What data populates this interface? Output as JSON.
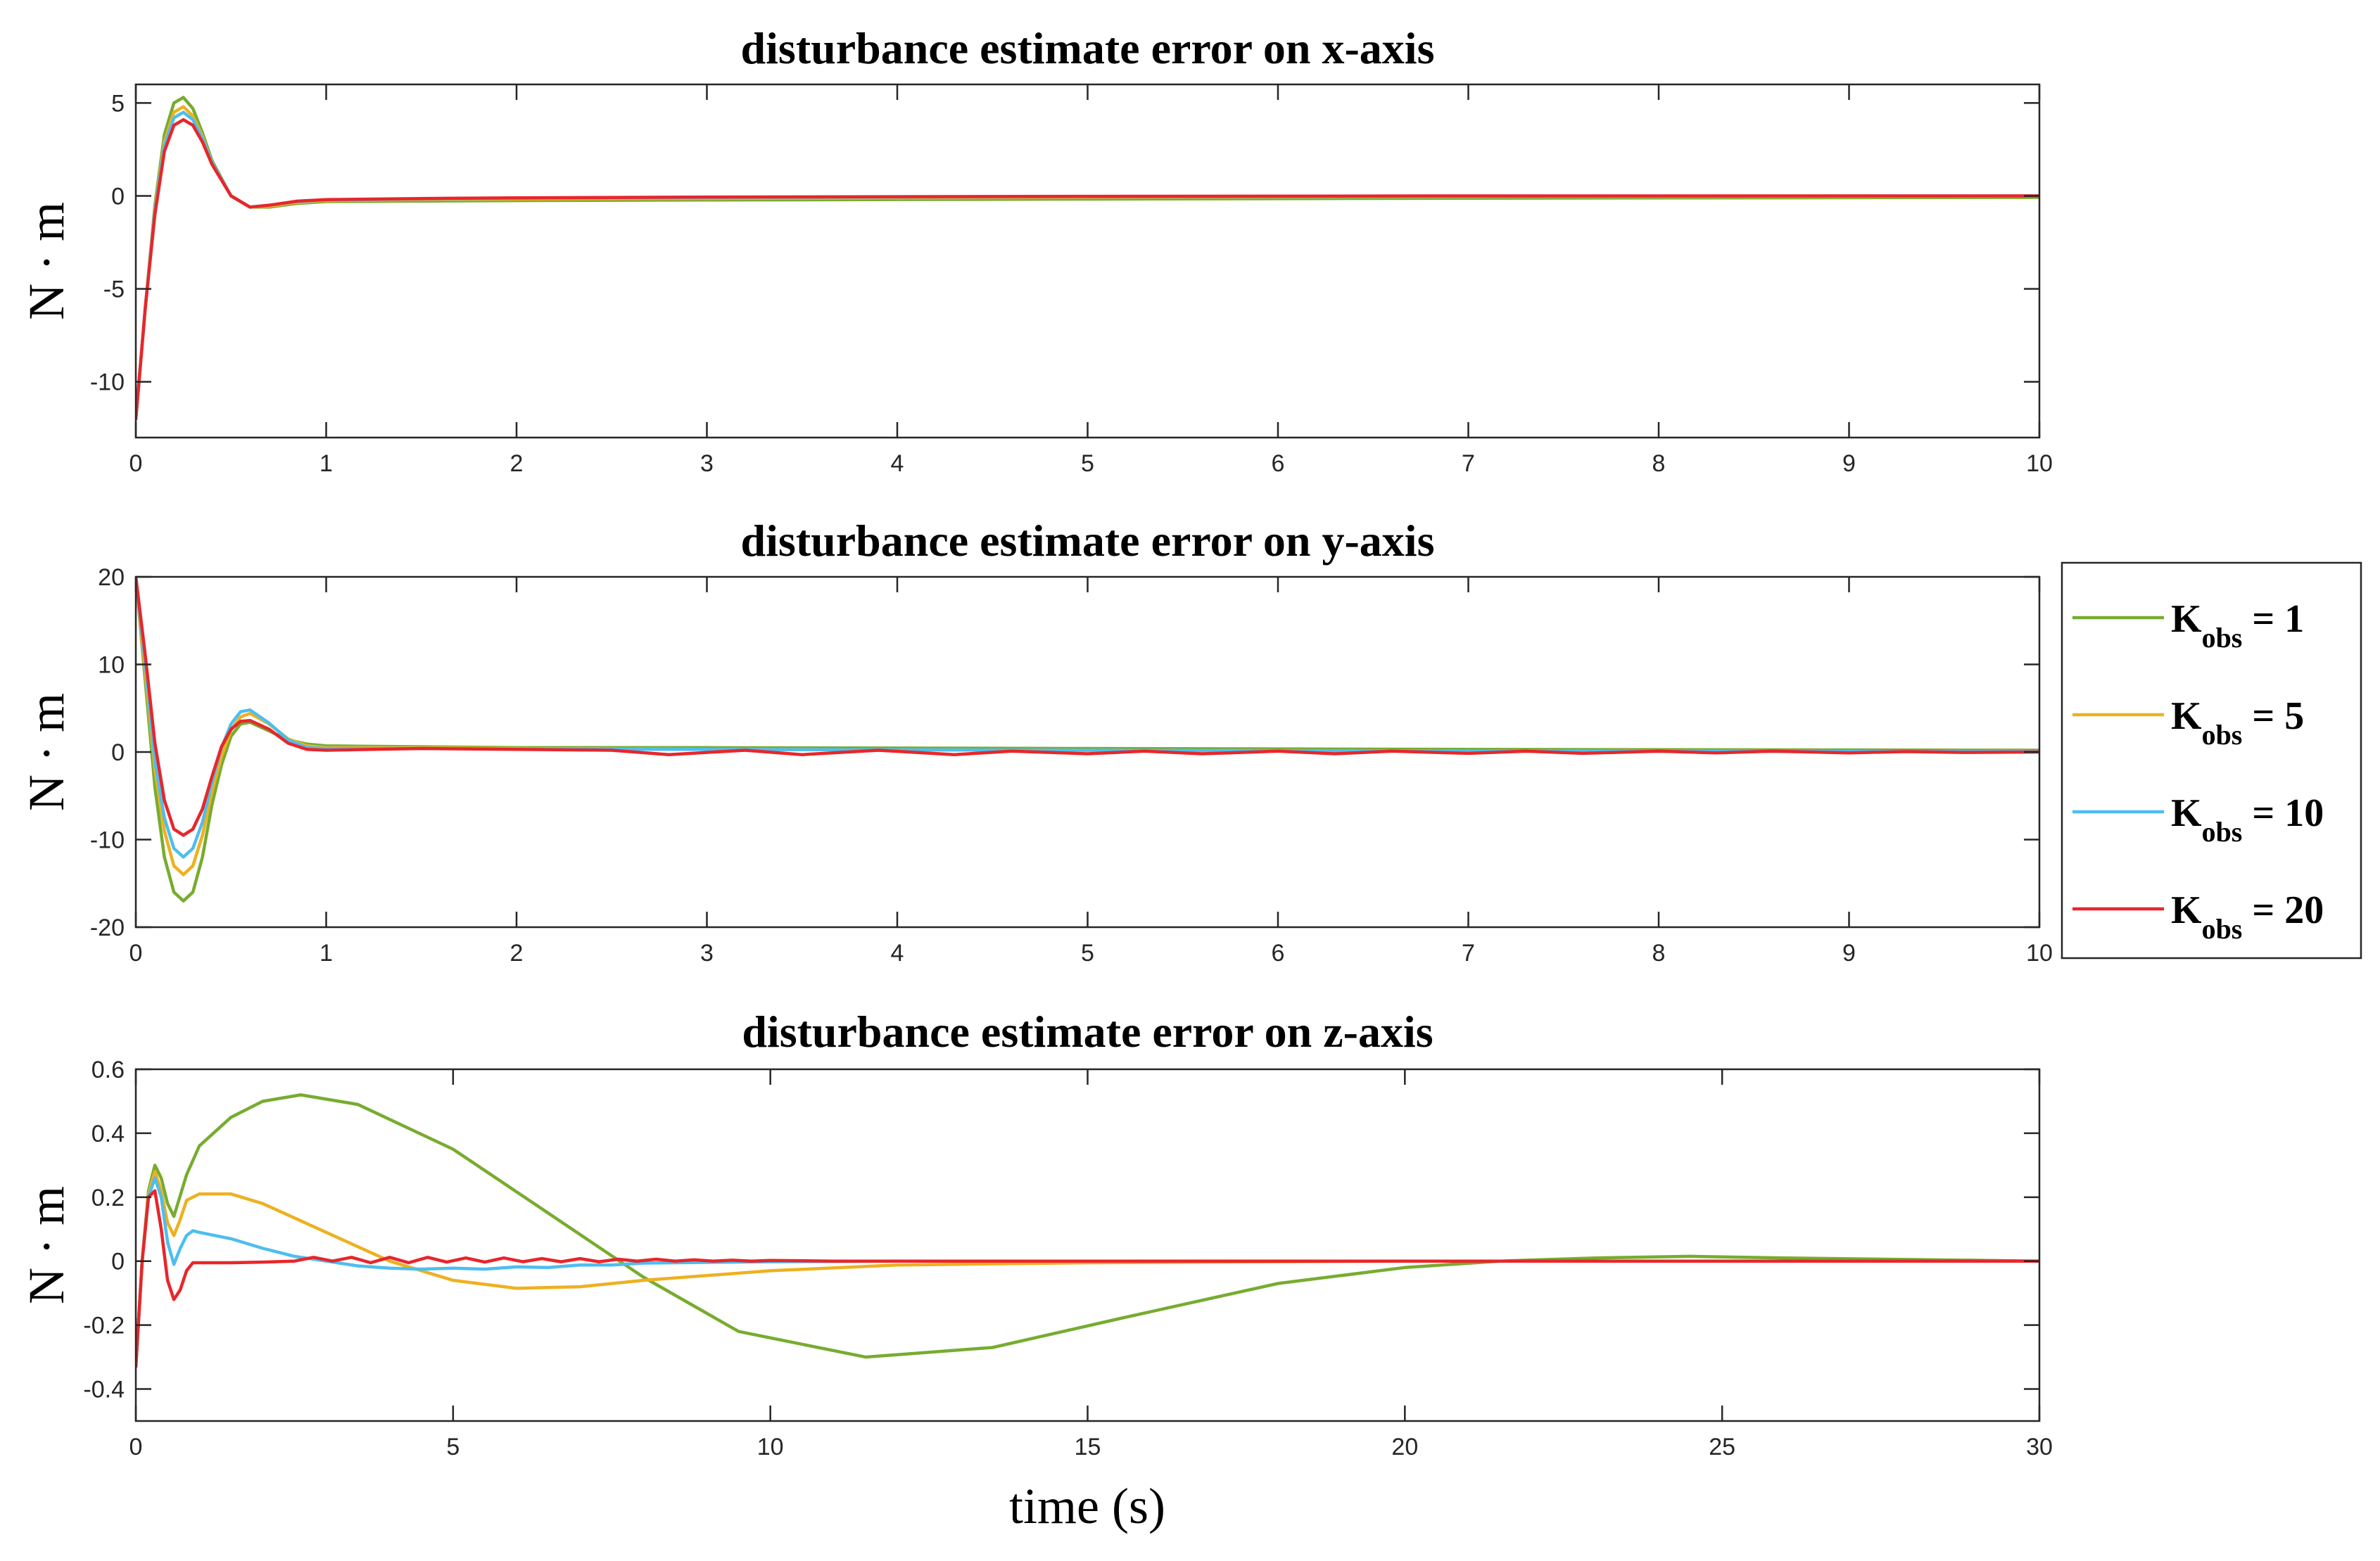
{
  "colors": {
    "k1": "#77AC30",
    "k5": "#EDB120",
    "k10": "#4DBEEE",
    "k20": "#E8262B"
  },
  "legend": {
    "items": [
      {
        "main": "K",
        "sub": "obs",
        "suffix": " = 1",
        "color": "#77AC30"
      },
      {
        "main": "K",
        "sub": "obs",
        "suffix": " = 5",
        "color": "#EDB120"
      },
      {
        "main": "K",
        "sub": "obs",
        "suffix": " = 10",
        "color": "#4DBEEE"
      },
      {
        "main": "K",
        "sub": "obs",
        "suffix": " = 20",
        "color": "#E8262B"
      }
    ]
  },
  "xlabel": "time (s)",
  "chart_data": [
    {
      "type": "line",
      "title": "disturbance estimate error on x-axis",
      "ylabel": "N · m",
      "xlim": [
        0,
        10
      ],
      "ylim": [
        -13,
        6
      ],
      "xticks": [
        0,
        1,
        2,
        3,
        4,
        5,
        6,
        7,
        8,
        9,
        10
      ],
      "xtick_labels": [
        "0",
        "1",
        "2",
        "3",
        "4",
        "5",
        "6",
        "7",
        "8",
        "9",
        "10"
      ],
      "yticks": [
        5,
        0,
        -5,
        -10
      ],
      "ytick_labels": [
        "5",
        "0",
        "-5",
        "-10"
      ],
      "series": [
        {
          "name": "Kobs = 1",
          "color": "#77AC30",
          "x": [
            0,
            0.05,
            0.1,
            0.15,
            0.2,
            0.25,
            0.3,
            0.35,
            0.4,
            0.5,
            0.6,
            0.7,
            0.85,
            1,
            1.5,
            2,
            3,
            5,
            7,
            10
          ],
          "y": [
            -12,
            -6,
            -0.5,
            3.3,
            5.0,
            5.3,
            4.7,
            3.4,
            1.9,
            0.0,
            -0.6,
            -0.6,
            -0.4,
            -0.3,
            -0.28,
            -0.25,
            -0.22,
            -0.17,
            -0.12,
            -0.08
          ]
        },
        {
          "name": "Kobs = 5",
          "color": "#EDB120",
          "x": [
            0,
            0.05,
            0.1,
            0.15,
            0.2,
            0.25,
            0.3,
            0.35,
            0.4,
            0.5,
            0.6,
            0.7,
            0.85,
            1,
            1.5,
            2,
            3,
            5,
            7,
            10
          ],
          "y": [
            -12,
            -6,
            -0.7,
            2.9,
            4.5,
            4.8,
            4.3,
            3.2,
            1.8,
            0.0,
            -0.6,
            -0.55,
            -0.35,
            -0.25,
            -0.2,
            -0.17,
            -0.13,
            -0.08,
            -0.04,
            -0.02
          ]
        },
        {
          "name": "Kobs = 10",
          "color": "#4DBEEE",
          "x": [
            0,
            0.05,
            0.1,
            0.15,
            0.2,
            0.25,
            0.3,
            0.35,
            0.4,
            0.5,
            0.6,
            0.7,
            0.85,
            1,
            1.5,
            2,
            3,
            5,
            7,
            10
          ],
          "y": [
            -12,
            -6,
            -0.8,
            2.7,
            4.2,
            4.5,
            4.1,
            3.1,
            1.8,
            0.0,
            -0.6,
            -0.5,
            -0.3,
            -0.22,
            -0.16,
            -0.12,
            -0.08,
            -0.04,
            -0.02,
            0.0
          ]
        },
        {
          "name": "Kobs = 20",
          "color": "#E8262B",
          "x": [
            0,
            0.05,
            0.1,
            0.15,
            0.2,
            0.25,
            0.3,
            0.35,
            0.4,
            0.5,
            0.6,
            0.7,
            0.85,
            1,
            1.5,
            2,
            3,
            5,
            7,
            10
          ],
          "y": [
            -12,
            -6,
            -1.0,
            2.4,
            3.8,
            4.1,
            3.8,
            2.9,
            1.7,
            0.0,
            -0.6,
            -0.5,
            -0.28,
            -0.2,
            -0.14,
            -0.1,
            -0.06,
            -0.02,
            0.0,
            0.0
          ]
        }
      ]
    },
    {
      "type": "line",
      "title": "disturbance estimate error on y-axis",
      "ylabel": "N · m",
      "xlim": [
        0,
        10
      ],
      "ylim": [
        -20,
        20
      ],
      "xticks": [
        0,
        1,
        2,
        3,
        4,
        5,
        6,
        7,
        8,
        9,
        10
      ],
      "xtick_labels": [
        "0",
        "1",
        "2",
        "3",
        "4",
        "5",
        "6",
        "7",
        "8",
        "9",
        "10"
      ],
      "yticks": [
        20,
        10,
        0,
        -10,
        -20
      ],
      "ytick_labels": [
        "20",
        "10",
        "0",
        "-10",
        "-20"
      ],
      "series": [
        {
          "name": "Kobs = 1",
          "color": "#77AC30",
          "x": [
            0,
            0.05,
            0.1,
            0.15,
            0.2,
            0.25,
            0.3,
            0.35,
            0.4,
            0.45,
            0.5,
            0.55,
            0.6,
            0.7,
            0.8,
            0.9,
            1,
            1.5,
            2,
            3,
            5,
            7,
            10
          ],
          "y": [
            20,
            8,
            -4,
            -12,
            -16,
            -17,
            -16,
            -12,
            -6,
            -1.5,
            1.8,
            3.2,
            3.4,
            2.4,
            1.4,
            0.9,
            0.7,
            0.6,
            0.5,
            0.5,
            0.4,
            0.3,
            0.2
          ]
        },
        {
          "name": "Kobs = 5",
          "color": "#EDB120",
          "x": [
            0,
            0.05,
            0.1,
            0.15,
            0.2,
            0.25,
            0.3,
            0.35,
            0.4,
            0.45,
            0.5,
            0.55,
            0.6,
            0.7,
            0.8,
            0.9,
            1,
            1.5,
            2,
            3,
            5,
            7,
            10
          ],
          "y": [
            20,
            9,
            -2,
            -9,
            -13,
            -14,
            -13,
            -9.5,
            -4.5,
            -0.5,
            2.5,
            4.0,
            4.4,
            3.2,
            1.5,
            0.7,
            0.5,
            0.5,
            0.4,
            0.3,
            0.2,
            0.1,
            0.05
          ]
        },
        {
          "name": "Kobs = 10",
          "color": "#4DBEEE",
          "x": [
            0,
            0.05,
            0.1,
            0.15,
            0.2,
            0.25,
            0.3,
            0.35,
            0.4,
            0.45,
            0.5,
            0.55,
            0.6,
            0.7,
            0.8,
            0.9,
            1,
            1.5,
            2,
            3,
            5,
            7,
            10
          ],
          "y": [
            20,
            10,
            -1,
            -7.5,
            -11,
            -12,
            -11,
            -8,
            -3.5,
            0.5,
            3.2,
            4.6,
            4.8,
            3.3,
            1.4,
            0.5,
            0.4,
            0.4,
            0.35,
            0.3,
            0.2,
            0.1,
            0.05
          ]
        },
        {
          "name": "Kobs = 20",
          "color": "#E8262B",
          "x": [
            0,
            0.05,
            0.1,
            0.15,
            0.2,
            0.25,
            0.3,
            0.35,
            0.4,
            0.45,
            0.5,
            0.55,
            0.6,
            0.7,
            0.8,
            0.9,
            1,
            1.5,
            2,
            2.5,
            2.8,
            3.2,
            3.5,
            3.9,
            4.3,
            4.6,
            5,
            5.3,
            5.6,
            6,
            6.3,
            6.6,
            7,
            7.3,
            7.6,
            8,
            8.3,
            8.6,
            9,
            9.3,
            9.6,
            10
          ],
          "y": [
            20,
            11,
            1,
            -5.5,
            -8.8,
            -9.5,
            -8.8,
            -6.5,
            -2.8,
            0.6,
            2.6,
            3.5,
            3.6,
            2.6,
            1.0,
            0.3,
            0.2,
            0.4,
            0.3,
            0.2,
            -0.3,
            0.2,
            -0.3,
            0.2,
            -0.3,
            0.1,
            -0.2,
            0.1,
            -0.2,
            0.1,
            -0.2,
            0.1,
            -0.15,
            0.1,
            -0.15,
            0.1,
            -0.1,
            0.1,
            -0.1,
            0.05,
            -0.05,
            0.0
          ]
        }
      ]
    },
    {
      "type": "line",
      "title": "disturbance estimate error on z-axis",
      "ylabel": "N · m",
      "xlim": [
        0,
        30
      ],
      "ylim": [
        -0.5,
        0.6
      ],
      "xticks": [
        0,
        5,
        10,
        15,
        20,
        25,
        30
      ],
      "xtick_labels": [
        "0",
        "5",
        "10",
        "15",
        "20",
        "25",
        "30"
      ],
      "yticks": [
        0.6,
        0.4,
        0.2,
        0,
        -0.2,
        -0.4
      ],
      "ytick_labels": [
        "0.6",
        "0.4",
        "0.2",
        "0",
        "-0.2",
        "-0.4"
      ],
      "series": [
        {
          "name": "Kobs = 1",
          "color": "#77AC30",
          "x": [
            0,
            0.1,
            0.2,
            0.3,
            0.4,
            0.5,
            0.6,
            0.8,
            1.0,
            1.5,
            2.0,
            2.6,
            3.5,
            5,
            6.5,
            8,
            9.5,
            11.5,
            13.5,
            15.5,
            18,
            20,
            21.5,
            23,
            24.5,
            26,
            28,
            30
          ],
          "y": [
            -0.33,
            0.0,
            0.22,
            0.3,
            0.26,
            0.18,
            0.14,
            0.27,
            0.36,
            0.45,
            0.5,
            0.52,
            0.49,
            0.35,
            0.15,
            -0.05,
            -0.22,
            -0.3,
            -0.27,
            -0.18,
            -0.07,
            -0.02,
            0.0,
            0.01,
            0.015,
            0.01,
            0.005,
            0.0
          ]
        },
        {
          "name": "Kobs = 5",
          "color": "#EDB120",
          "x": [
            0,
            0.1,
            0.2,
            0.3,
            0.4,
            0.5,
            0.6,
            0.7,
            0.8,
            1.0,
            1.5,
            2.0,
            3,
            4,
            5,
            6,
            7,
            8,
            10,
            12,
            15,
            20,
            25,
            30
          ],
          "y": [
            -0.33,
            0.0,
            0.21,
            0.28,
            0.22,
            0.12,
            0.08,
            0.13,
            0.19,
            0.21,
            0.21,
            0.18,
            0.09,
            0.0,
            -0.06,
            -0.085,
            -0.08,
            -0.06,
            -0.03,
            -0.012,
            -0.005,
            0.0,
            0.0,
            0.0
          ]
        },
        {
          "name": "Kobs = 10",
          "color": "#4DBEEE",
          "x": [
            0,
            0.1,
            0.2,
            0.3,
            0.4,
            0.5,
            0.6,
            0.7,
            0.8,
            0.9,
            1.0,
            1.5,
            2.0,
            2.5,
            3.0,
            3.5,
            4,
            4.5,
            5,
            5.5,
            6,
            6.5,
            7,
            7.5,
            8,
            9,
            10,
            12,
            15,
            20,
            25,
            30
          ],
          "y": [
            -0.33,
            0.0,
            0.2,
            0.26,
            0.2,
            0.06,
            -0.01,
            0.04,
            0.08,
            0.095,
            0.09,
            0.07,
            0.04,
            0.015,
            0.0,
            -0.015,
            -0.022,
            -0.025,
            -0.022,
            -0.025,
            -0.018,
            -0.02,
            -0.012,
            -0.012,
            -0.006,
            -0.004,
            -0.002,
            0.0,
            0.0,
            0.0,
            0.0,
            0.0
          ]
        },
        {
          "name": "Kobs = 20",
          "color": "#E8262B",
          "x": [
            0,
            0.1,
            0.2,
            0.3,
            0.4,
            0.5,
            0.6,
            0.7,
            0.8,
            0.9,
            1.0,
            1.5,
            2.0,
            2.5,
            2.8,
            3.1,
            3.4,
            3.7,
            4.0,
            4.3,
            4.6,
            4.9,
            5.2,
            5.5,
            5.8,
            6.1,
            6.4,
            6.7,
            7.0,
            7.3,
            7.6,
            7.9,
            8.2,
            8.5,
            8.8,
            9.1,
            9.4,
            9.7,
            10,
            11,
            12,
            15,
            20,
            25,
            30
          ],
          "y": [
            -0.33,
            0.0,
            0.2,
            0.22,
            0.1,
            -0.06,
            -0.12,
            -0.09,
            -0.03,
            -0.005,
            -0.005,
            -0.005,
            -0.003,
            0.0,
            0.012,
            0.0,
            0.012,
            -0.005,
            0.012,
            -0.005,
            0.012,
            -0.003,
            0.01,
            -0.003,
            0.01,
            -0.002,
            0.008,
            -0.002,
            0.008,
            -0.002,
            0.006,
            0.0,
            0.006,
            0.0,
            0.004,
            0.0,
            0.003,
            0.0,
            0.002,
            0.0,
            0.0,
            0.0,
            0.0,
            0.0,
            0.0
          ]
        }
      ]
    }
  ]
}
